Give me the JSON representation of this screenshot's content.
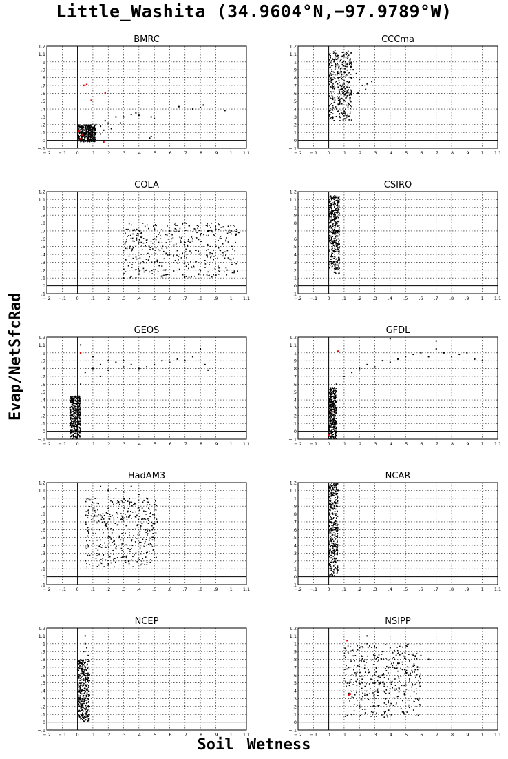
{
  "title": "Little_Washita (34.9604°N,−97.9789°W)",
  "ylabel": "Evap/NetSfcRad",
  "xlabel": "Soil Wetness",
  "colors": {
    "points": "#000000",
    "highlight": "#e00000",
    "grid": "#000000"
  },
  "chart_data": [
    {
      "type": "scatter",
      "title": "BMRC",
      "xlim": [
        -0.2,
        1.1
      ],
      "ylim": [
        -0.1,
        1.2
      ],
      "grid": true,
      "cluster": [
        0.0,
        0.12,
        -0.02,
        0.2
      ],
      "points": [
        [
          0.05,
          0.05
        ],
        [
          0.08,
          0.1
        ],
        [
          0.1,
          0.15
        ],
        [
          0.12,
          0.2
        ],
        [
          0.15,
          0.18
        ],
        [
          0.18,
          0.25
        ],
        [
          0.2,
          0.22
        ],
        [
          0.22,
          0.15
        ],
        [
          0.25,
          0.3
        ],
        [
          0.28,
          0.22
        ],
        [
          0.3,
          0.3
        ],
        [
          0.35,
          0.33
        ],
        [
          0.38,
          0.35
        ],
        [
          0.4,
          0.32
        ],
        [
          0.48,
          0.3
        ],
        [
          0.5,
          0.28
        ],
        [
          0.66,
          0.43
        ],
        [
          0.75,
          0.4
        ],
        [
          0.8,
          0.42
        ],
        [
          0.82,
          0.45
        ],
        [
          0.96,
          0.38
        ],
        [
          0.17,
          0.13
        ],
        [
          0.48,
          0.05
        ],
        [
          0.47,
          0.03
        ],
        [
          0.15,
          0.08
        ]
      ],
      "highlight": [
        [
          0.04,
          0.7
        ],
        [
          0.06,
          0.71
        ],
        [
          0.09,
          0.51
        ],
        [
          0.18,
          0.6
        ],
        [
          0.01,
          0.12
        ],
        [
          0.02,
          0.02
        ],
        [
          0.17,
          -0.02
        ],
        [
          0.03,
          0.07
        ]
      ]
    },
    {
      "type": "scatter",
      "title": "CCCma",
      "xlim": [
        -0.2,
        1.1
      ],
      "ylim": [
        -0.1,
        1.2
      ],
      "grid": true,
      "cluster": [
        0.0,
        0.15,
        0.25,
        1.15
      ],
      "points": [
        [
          0.12,
          0.75
        ],
        [
          0.15,
          0.8
        ],
        [
          0.18,
          0.85
        ],
        [
          0.2,
          0.78
        ],
        [
          0.22,
          0.7
        ],
        [
          0.25,
          0.72
        ],
        [
          0.28,
          0.75
        ],
        [
          0.24,
          0.65
        ],
        [
          0.19,
          0.6
        ],
        [
          0.16,
          0.9
        ]
      ],
      "highlight": []
    },
    {
      "type": "scatter",
      "title": "COLA",
      "xlim": [
        -0.2,
        1.1
      ],
      "ylim": [
        -0.1,
        1.2
      ],
      "grid": true,
      "cluster": [
        0.3,
        1.05,
        0.1,
        0.8
      ],
      "points": [
        [
          0.3,
          0.1
        ],
        [
          0.35,
          0.12
        ],
        [
          0.4,
          0.15
        ],
        [
          0.45,
          0.2
        ],
        [
          0.5,
          0.3
        ],
        [
          0.55,
          0.25
        ],
        [
          0.6,
          0.4
        ],
        [
          0.65,
          0.45
        ],
        [
          0.7,
          0.55
        ],
        [
          0.75,
          0.6
        ],
        [
          0.8,
          0.65
        ],
        [
          0.85,
          0.7
        ],
        [
          0.9,
          0.72
        ],
        [
          0.95,
          0.75
        ],
        [
          1.0,
          0.7
        ],
        [
          1.05,
          0.68
        ],
        [
          0.5,
          0.6
        ],
        [
          0.6,
          0.7
        ],
        [
          0.7,
          0.8
        ],
        [
          0.45,
          0.55
        ]
      ],
      "highlight": []
    },
    {
      "type": "scatter",
      "title": "CSIRO",
      "xlim": [
        -0.2,
        1.1
      ],
      "ylim": [
        -0.1,
        1.2
      ],
      "grid": true,
      "cluster": [
        0.0,
        0.07,
        0.15,
        1.15
      ],
      "points": [
        [
          0.03,
          0.3
        ],
        [
          0.05,
          0.5
        ],
        [
          0.06,
          0.7
        ],
        [
          0.04,
          0.9
        ],
        [
          0.02,
          1.1
        ]
      ],
      "highlight": []
    },
    {
      "type": "scatter",
      "title": "GEOS",
      "xlim": [
        -0.2,
        1.1
      ],
      "ylim": [
        -0.1,
        1.2
      ],
      "grid": true,
      "cluster": [
        -0.05,
        0.02,
        -0.1,
        0.45
      ],
      "points": [
        [
          0.02,
          0.6
        ],
        [
          0.05,
          0.75
        ],
        [
          0.1,
          0.8
        ],
        [
          0.15,
          0.85
        ],
        [
          0.2,
          0.9
        ],
        [
          0.25,
          0.88
        ],
        [
          0.3,
          0.9
        ],
        [
          0.35,
          0.85
        ],
        [
          0.4,
          0.8
        ],
        [
          0.45,
          0.82
        ],
        [
          0.5,
          0.85
        ],
        [
          0.55,
          0.9
        ],
        [
          0.6,
          0.88
        ],
        [
          0.65,
          0.92
        ],
        [
          0.7,
          0.9
        ],
        [
          0.75,
          0.95
        ],
        [
          0.8,
          1.05
        ],
        [
          0.83,
          0.85
        ],
        [
          0.85,
          0.78
        ],
        [
          0.1,
          0.95
        ],
        [
          0.15,
          0.7
        ],
        [
          0.2,
          0.78
        ],
        [
          0.3,
          0.82
        ],
        [
          0.02,
          1.1
        ]
      ],
      "highlight": [
        [
          0.02,
          1.0
        ]
      ]
    },
    {
      "type": "scatter",
      "title": "GFDL",
      "xlim": [
        -0.2,
        1.1
      ],
      "ylim": [
        -0.1,
        1.2
      ],
      "grid": true,
      "cluster": [
        0.0,
        0.05,
        -0.1,
        0.55
      ],
      "points": [
        [
          0.05,
          0.6
        ],
        [
          0.1,
          0.7
        ],
        [
          0.15,
          0.75
        ],
        [
          0.2,
          0.8
        ],
        [
          0.25,
          0.85
        ],
        [
          0.3,
          0.82
        ],
        [
          0.35,
          0.9
        ],
        [
          0.4,
          0.88
        ],
        [
          0.45,
          0.92
        ],
        [
          0.5,
          0.95
        ],
        [
          0.55,
          0.98
        ],
        [
          0.6,
          1.0
        ],
        [
          0.65,
          0.95
        ],
        [
          0.7,
          1.05
        ],
        [
          0.75,
          1.0
        ],
        [
          0.8,
          0.95
        ],
        [
          0.85,
          0.98
        ],
        [
          0.9,
          1.0
        ],
        [
          0.95,
          0.92
        ],
        [
          1.0,
          0.9
        ],
        [
          0.4,
          1.18
        ],
        [
          0.7,
          1.15
        ]
      ],
      "highlight": [
        [
          0.06,
          1.02
        ],
        [
          0.02,
          0.25
        ],
        [
          0.0,
          -0.05
        ]
      ]
    },
    {
      "type": "scatter",
      "title": "HadAM3",
      "xlim": [
        -0.2,
        1.1
      ],
      "ylim": [
        -0.1,
        1.2
      ],
      "grid": true,
      "cluster": [
        0.05,
        0.52,
        0.12,
        1.0
      ],
      "points": [
        [
          0.15,
          1.15
        ],
        [
          0.2,
          1.1
        ],
        [
          0.25,
          1.12
        ],
        [
          0.3,
          1.08
        ],
        [
          0.35,
          1.15
        ],
        [
          0.4,
          1.05
        ],
        [
          0.45,
          1.0
        ],
        [
          0.5,
          0.75
        ],
        [
          0.52,
          0.7
        ],
        [
          0.35,
          0.95
        ]
      ],
      "highlight": []
    },
    {
      "type": "scatter",
      "title": "NCAR",
      "xlim": [
        -0.2,
        1.1
      ],
      "ylim": [
        -0.1,
        1.2
      ],
      "grid": true,
      "cluster": [
        0.0,
        0.06,
        0.0,
        1.2
      ],
      "points": [
        [
          0.02,
          0.1
        ],
        [
          0.03,
          0.3
        ],
        [
          0.04,
          0.6
        ],
        [
          0.05,
          0.9
        ],
        [
          0.06,
          1.1
        ]
      ],
      "highlight": []
    },
    {
      "type": "scatter",
      "title": "NCEP",
      "xlim": [
        -0.2,
        1.1
      ],
      "ylim": [
        -0.1,
        1.2
      ],
      "grid": true,
      "cluster": [
        0.0,
        0.08,
        0.0,
        0.8
      ],
      "points": [
        [
          0.04,
          0.9
        ],
        [
          0.05,
          1.0
        ],
        [
          0.05,
          1.1
        ],
        [
          0.06,
          0.95
        ],
        [
          0.07,
          0.85
        ]
      ],
      "highlight": []
    },
    {
      "type": "scatter",
      "title": "NSIPP",
      "xlim": [
        -0.2,
        1.1
      ],
      "ylim": [
        -0.1,
        1.2
      ],
      "grid": true,
      "cluster": [
        0.1,
        0.6,
        0.05,
        1.0
      ],
      "points": [
        [
          0.15,
          0.1
        ],
        [
          0.2,
          0.2
        ],
        [
          0.25,
          0.35
        ],
        [
          0.3,
          0.5
        ],
        [
          0.35,
          0.6
        ],
        [
          0.4,
          0.7
        ],
        [
          0.45,
          0.75
        ],
        [
          0.5,
          0.8
        ],
        [
          0.55,
          0.85
        ],
        [
          0.6,
          0.85
        ],
        [
          0.65,
          0.8
        ],
        [
          0.3,
          0.85
        ],
        [
          0.35,
          0.9
        ],
        [
          0.4,
          0.95
        ],
        [
          0.25,
          1.1
        ],
        [
          0.2,
          0.95
        ]
      ],
      "highlight": [
        [
          0.12,
          1.04
        ],
        [
          0.14,
          0.36
        ],
        [
          0.13,
          0.35
        ]
      ]
    }
  ]
}
